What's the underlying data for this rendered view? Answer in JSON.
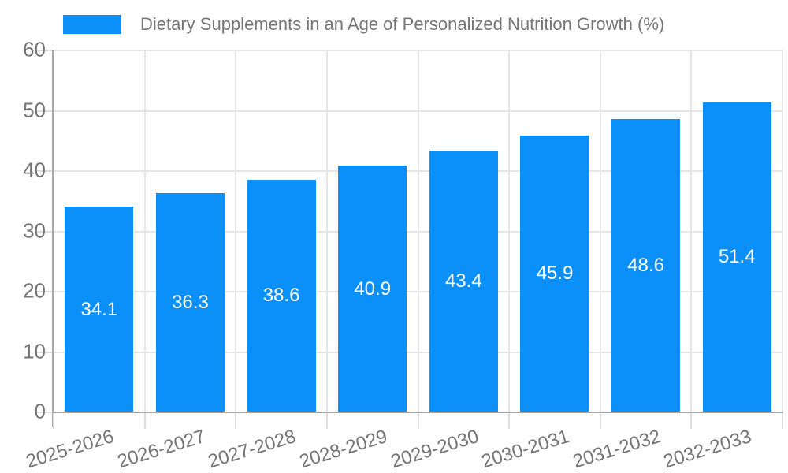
{
  "legend": {
    "label": "Dietary Supplements in an Age of Personalized Nutrition Growth (%)",
    "swatch_color": "#0a90f8"
  },
  "chart_data": {
    "type": "bar",
    "title": "Dietary Supplements in an Age of Personalized Nutrition Growth (%)",
    "categories": [
      "2025-2026",
      "2026-2027",
      "2027-2028",
      "2028-2029",
      "2029-2030",
      "2030-2031",
      "2031-2032",
      "2032-2033"
    ],
    "values": [
      34.1,
      36.3,
      38.6,
      40.9,
      43.4,
      45.9,
      48.6,
      51.4
    ],
    "value_labels": [
      "34.1",
      "36.3",
      "38.6",
      "40.9",
      "43.4",
      "45.9",
      "48.6",
      "51.4"
    ],
    "xlabel": "",
    "ylabel": "",
    "ylim": [
      0,
      60
    ],
    "yticks": [
      0,
      10,
      20,
      30,
      40,
      50,
      60
    ],
    "grid": true,
    "legend_position": "top",
    "bar_color": "#0a90f8",
    "value_label_color": "#ffffff",
    "axis_text_color": "#757575",
    "axis_line_color": "#a6a6a6",
    "grid_color": "#e6e6e6",
    "background_color": "#ffffff"
  }
}
